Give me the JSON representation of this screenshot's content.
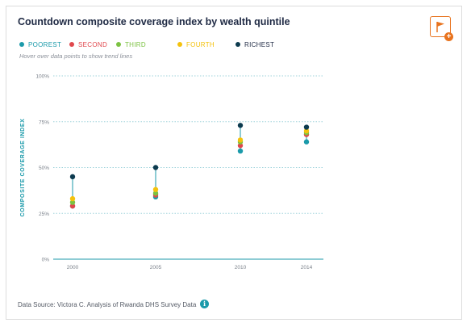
{
  "title": "Countdown composite coverage index by wealth quintile",
  "hint": "Hover over data points to show trend lines",
  "source": "Data Source: Victora C. Analysis of Rwanda DHS Survey Data",
  "icons": {
    "flag": "flag-icon",
    "add": "plus-icon",
    "info": "info-icon"
  },
  "colors": {
    "poorest": "#1b9aaa",
    "second": "#e0474c",
    "third": "#7cc242",
    "fourth": "#f4c20d",
    "richest": "#0d3b4f",
    "connector": "#1b9aaa",
    "grid": "#9fd3db"
  },
  "chart_data": {
    "type": "scatter",
    "categories": [
      "2000",
      "2005",
      "2010",
      "2014"
    ],
    "ylabel": "COMPOSITE COVERAGE INDEX",
    "ylim": [
      0,
      100
    ],
    "y_ticks": [
      "0%",
      "25%",
      "50%",
      "75%",
      "100%"
    ],
    "legend_position": "top-left",
    "series": [
      {
        "name": "POOREST",
        "color": "#1b9aaa",
        "values": [
          29,
          34,
          59,
          64
        ]
      },
      {
        "name": "SECOND",
        "color": "#e0474c",
        "values": [
          29,
          35,
          62,
          68
        ]
      },
      {
        "name": "THIRD",
        "color": "#7cc242",
        "values": [
          31,
          36,
          64,
          69
        ]
      },
      {
        "name": "FOURTH",
        "color": "#f4c20d",
        "values": [
          33,
          38,
          65,
          70
        ]
      },
      {
        "name": "RICHEST",
        "color": "#0d3b4f",
        "values": [
          45,
          50,
          73,
          72
        ]
      }
    ]
  }
}
